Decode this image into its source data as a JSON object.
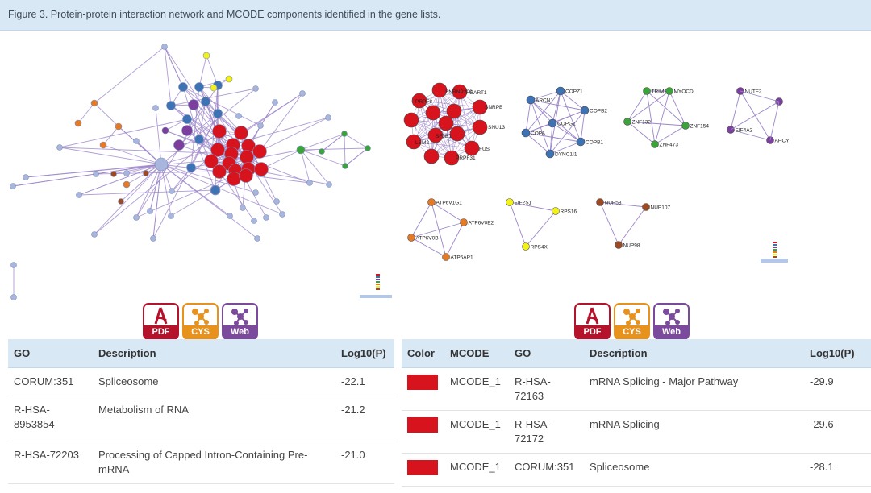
{
  "caption": "Figure 3. Protein-protein interaction network and MCODE components identified in the gene lists.",
  "icons": {
    "pdf": "PDF",
    "cys": "CYS",
    "web": "Web"
  },
  "mcode_labels": {
    "m1": [
      "SNRNP200",
      "HEART1",
      "SNRPB",
      "PRPF8",
      "SNU13",
      "SF3B1",
      "FUS",
      "PRPF31",
      "LSM2"
    ],
    "m2": [
      "COPZ1",
      "ARCN1",
      "COPB2",
      "COPG1",
      "COPA",
      "COPB1",
      "DYNC1I1"
    ],
    "m3": [
      "TRIM28",
      "MYOCD",
      "ZNF132",
      "ZNF154",
      "ZNF473"
    ],
    "m4": [
      "NUTF2",
      "EIF4A2",
      "AHCY"
    ],
    "m5": [
      "ATP6V1G1",
      "ATP6V0E2",
      "ATP6V0B",
      "ATP6AP1"
    ],
    "m6": [
      "EIF2S1",
      "RPS16",
      "RPS4X"
    ],
    "m7": [
      "NUP58",
      "NUP107",
      "NUP98"
    ]
  },
  "left_table": {
    "headers": [
      "GO",
      "Description",
      "Log10(P)"
    ],
    "rows": [
      {
        "go": "CORUM:351",
        "desc": "Spliceosome",
        "p": "-22.1"
      },
      {
        "go": "R-HSA-8953854",
        "desc": "Metabolism of RNA",
        "p": "-21.2"
      },
      {
        "go": "R-HSA-72203",
        "desc": "Processing of Capped Intron-Containing Pre-mRNA",
        "p": "-21.0"
      }
    ]
  },
  "right_table": {
    "headers": [
      "Color",
      "MCODE",
      "GO",
      "Description",
      "Log10(P)"
    ],
    "rows": [
      {
        "color": "#d7141e",
        "mcode": "MCODE_1",
        "go": "R-HSA-72163",
        "desc": "mRNA Splicing - Major Pathway",
        "p": "-29.9"
      },
      {
        "color": "#d7141e",
        "mcode": "MCODE_1",
        "go": "R-HSA-72172",
        "desc": "mRNA Splicing",
        "p": "-29.6"
      },
      {
        "color": "#d7141e",
        "mcode": "MCODE_1",
        "go": "CORUM:351",
        "desc": "Spliceosome",
        "p": "-28.1"
      }
    ]
  }
}
